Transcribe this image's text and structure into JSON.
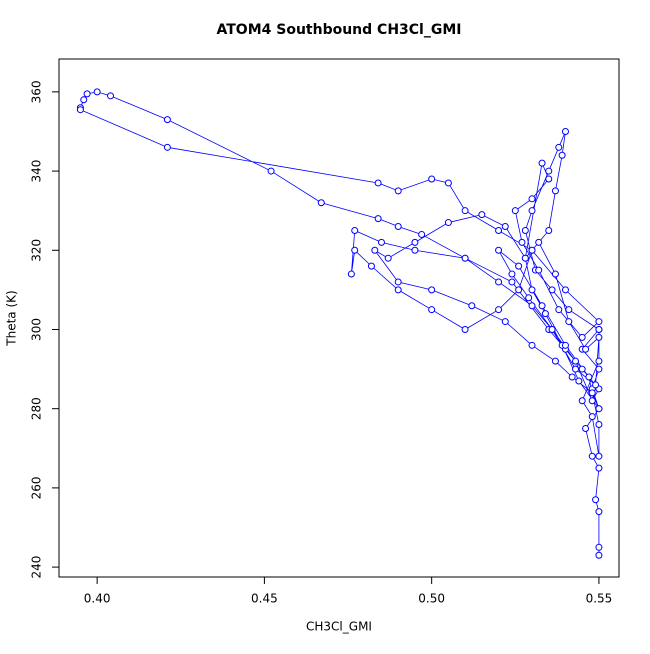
{
  "chart_data": {
    "type": "line",
    "title": "ATOM4 Southbound CH3Cl_GMI",
    "x_label": "CH3Cl_GMI",
    "y_label": "Theta (K)",
    "color": "#0000ff",
    "markers": "open-circle",
    "x": [
      0.55,
      0.55,
      0.55,
      0.549,
      0.55,
      0.548,
      0.546,
      0.55,
      0.548,
      0.55,
      0.545,
      0.55,
      0.541,
      0.536,
      0.531,
      0.528,
      0.53,
      0.535,
      0.538,
      0.54,
      0.539,
      0.537,
      0.535,
      0.53,
      0.526,
      0.52,
      0.51,
      0.5,
      0.49,
      0.482,
      0.477,
      0.476,
      0.477,
      0.485,
      0.495,
      0.51,
      0.524,
      0.535,
      0.54,
      0.545,
      0.55,
      0.548,
      0.543,
      0.536,
      0.53,
      0.52,
      0.51,
      0.497,
      0.49,
      0.484,
      0.467,
      0.452,
      0.421,
      0.404,
      0.4,
      0.397,
      0.396,
      0.395,
      0.395,
      0.421,
      0.484,
      0.49,
      0.5,
      0.505,
      0.51,
      0.52,
      0.53,
      0.54,
      0.55,
      0.545,
      0.538,
      0.532,
      0.527,
      0.525,
      0.53,
      0.535,
      0.533,
      0.528,
      0.522,
      0.515,
      0.505,
      0.495,
      0.487,
      0.483,
      0.49,
      0.5,
      0.512,
      0.522,
      0.53,
      0.537,
      0.542,
      0.548,
      0.55,
      0.544,
      0.539,
      0.534,
      0.53,
      0.528,
      0.532,
      0.537,
      0.541,
      0.546,
      0.55,
      0.549,
      0.543,
      0.536,
      0.529,
      0.524,
      0.52,
      0.526,
      0.533,
      0.54,
      0.547,
      0.55,
      0.55,
      0.548,
      0.545,
      0.55,
      0.55
    ],
    "values": [
      243,
      245,
      254,
      257,
      265,
      268,
      275,
      280,
      285,
      290,
      295,
      300,
      305,
      310,
      315,
      325,
      330,
      340,
      346,
      350,
      344,
      335,
      325,
      320,
      310,
      305,
      300,
      305,
      310,
      316,
      320,
      314,
      325,
      322,
      320,
      318,
      312,
      300,
      295,
      290,
      285,
      282,
      292,
      300,
      306,
      312,
      318,
      324,
      326,
      328,
      332,
      340,
      353,
      359,
      360,
      359.5,
      358,
      356,
      355.5,
      346,
      337,
      335,
      338,
      337,
      330,
      325,
      320,
      310,
      302,
      298,
      305,
      315,
      322,
      330,
      333,
      338,
      342,
      318,
      326,
      329,
      327,
      322,
      318,
      320,
      312,
      310,
      306,
      302,
      296,
      292,
      288,
      284,
      280,
      287,
      296,
      304,
      310,
      318,
      322,
      314,
      302,
      295,
      298,
      286,
      290,
      300,
      308,
      314,
      320,
      316,
      306,
      296,
      288,
      276,
      268,
      278,
      282,
      292,
      300
    ],
    "xlim": [
      0.3886,
      0.556
    ],
    "ylim": [
      237.5,
      368.3
    ],
    "xticks": [
      {
        "value": 0.4,
        "label": "0.40"
      },
      0.45,
      {
        "value": 0.5,
        "label": "0.50"
      },
      0.55
    ],
    "yticks": [
      240,
      260,
      280,
      300,
      320,
      340,
      360
    ]
  }
}
